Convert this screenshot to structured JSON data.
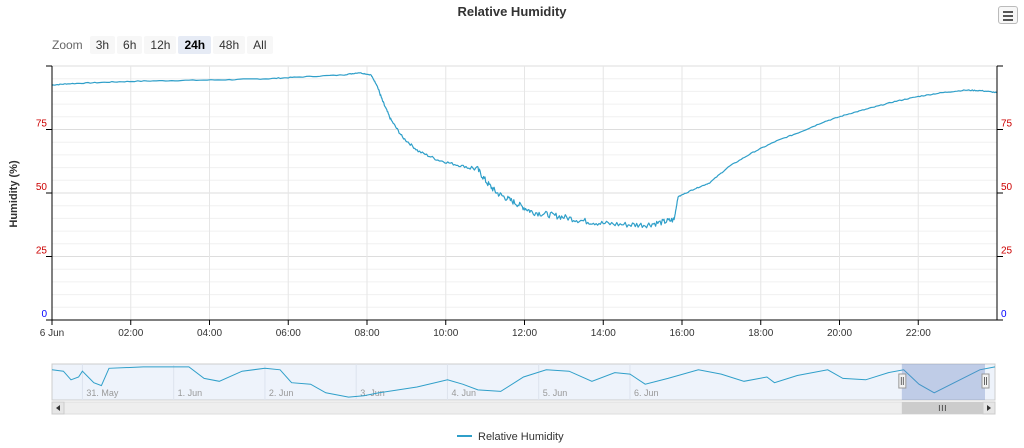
{
  "chart_data": {
    "type": "line",
    "title": "Relative Humidity",
    "ylabel": "Humidity (%)",
    "xlabel": "",
    "ylim": [
      0,
      100
    ],
    "y_ticks": [
      0,
      25,
      50,
      75
    ],
    "y_tick_colors": {
      "0": "#0000ff",
      "25": "#cc0000",
      "50": "#cc0000",
      "75": "#cc0000"
    },
    "x_range_hours": [
      0,
      24
    ],
    "x_ticks": [
      {
        "h": 0,
        "label": "6 Jun"
      },
      {
        "h": 2,
        "label": "02:00"
      },
      {
        "h": 4,
        "label": "04:00"
      },
      {
        "h": 6,
        "label": "06:00"
      },
      {
        "h": 8,
        "label": "08:00"
      },
      {
        "h": 10,
        "label": "10:00"
      },
      {
        "h": 12,
        "label": "12:00"
      },
      {
        "h": 14,
        "label": "14:00"
      },
      {
        "h": 16,
        "label": "16:00"
      },
      {
        "h": 18,
        "label": "18:00"
      },
      {
        "h": 20,
        "label": "20:00"
      },
      {
        "h": 22,
        "label": "22:00"
      }
    ],
    "grid": true,
    "legend_position": "bottom-center",
    "series": [
      {
        "name": "Relative Humidity",
        "color": "#2f9fc9",
        "points": [
          [
            0,
            92.5
          ],
          [
            0.4,
            93
          ],
          [
            1.2,
            93.5
          ],
          [
            2.1,
            94
          ],
          [
            3.2,
            94.3
          ],
          [
            4.5,
            94.6
          ],
          [
            5.5,
            95
          ],
          [
            6.2,
            95.6
          ],
          [
            7.4,
            96.5
          ],
          [
            7.8,
            97.4
          ],
          [
            8.1,
            96.5
          ],
          [
            8.25,
            92.5
          ],
          [
            8.4,
            86
          ],
          [
            8.6,
            79
          ],
          [
            8.9,
            72
          ],
          [
            9.3,
            66.5
          ],
          [
            9.8,
            63
          ],
          [
            10.3,
            61
          ],
          [
            10.8,
            59.5
          ],
          [
            11.05,
            54
          ],
          [
            11.3,
            50
          ],
          [
            11.6,
            47.5
          ],
          [
            11.9,
            45
          ],
          [
            12.2,
            42.5
          ],
          [
            12.6,
            41.5
          ],
          [
            13.0,
            40.5
          ],
          [
            13.5,
            39
          ],
          [
            14.0,
            38
          ],
          [
            14.6,
            37.5
          ],
          [
            15.1,
            37.5
          ],
          [
            15.5,
            38.5
          ],
          [
            15.8,
            39.5
          ],
          [
            15.9,
            48.5
          ],
          [
            16.3,
            51.5
          ],
          [
            16.7,
            54
          ],
          [
            17.2,
            60.5
          ],
          [
            17.8,
            66
          ],
          [
            18.4,
            70.5
          ],
          [
            19.0,
            74
          ],
          [
            19.6,
            78
          ],
          [
            20.2,
            81
          ],
          [
            20.8,
            83.5
          ],
          [
            21.4,
            86
          ],
          [
            22.0,
            88
          ],
          [
            22.6,
            89.5
          ],
          [
            23.2,
            90.5
          ],
          [
            23.6,
            90.3
          ],
          [
            24.0,
            89.5
          ]
        ]
      }
    ]
  },
  "zoom": {
    "label": "Zoom",
    "buttons": [
      "3h",
      "6h",
      "12h",
      "24h",
      "48h",
      "All"
    ],
    "selected": "24h"
  },
  "navigator": {
    "dates": [
      "31. May",
      "1. Jun",
      "2. Jun",
      "3. Jun",
      "4. Jun",
      "5. Jun",
      "6. Jun"
    ],
    "series": [
      [
        0,
        96
      ],
      [
        3,
        95
      ],
      [
        5,
        89
      ],
      [
        7,
        91
      ],
      [
        8,
        95
      ],
      [
        11,
        87
      ],
      [
        13,
        85
      ],
      [
        15,
        97
      ],
      [
        24,
        98
      ],
      [
        36,
        98
      ],
      [
        40,
        90
      ],
      [
        44,
        88
      ],
      [
        50,
        95
      ],
      [
        56,
        97
      ],
      [
        60,
        96
      ],
      [
        63,
        87
      ],
      [
        68,
        86
      ],
      [
        72,
        80
      ],
      [
        78,
        77
      ],
      [
        82,
        78
      ],
      [
        86,
        80
      ],
      [
        96,
        84
      ],
      [
        104,
        89
      ],
      [
        108,
        86
      ],
      [
        112,
        82
      ],
      [
        118,
        81
      ],
      [
        124,
        91
      ],
      [
        130,
        96
      ],
      [
        136,
        95
      ],
      [
        142,
        88
      ],
      [
        148,
        94
      ],
      [
        152,
        93
      ],
      [
        156,
        86
      ],
      [
        162,
        90
      ],
      [
        170,
        96
      ],
      [
        176,
        93
      ],
      [
        182,
        88
      ],
      [
        188,
        91
      ],
      [
        190,
        87
      ],
      [
        196,
        92
      ],
      [
        204,
        96
      ],
      [
        208,
        90
      ],
      [
        214,
        89
      ],
      [
        220,
        94
      ],
      [
        224,
        96
      ],
      [
        228,
        86
      ],
      [
        232,
        80
      ],
      [
        238,
        88
      ],
      [
        244,
        96
      ],
      [
        248,
        98
      ]
    ],
    "selection_start": 223.5,
    "selection_end": 248
  },
  "legend": {
    "label": "Relative Humidity"
  }
}
